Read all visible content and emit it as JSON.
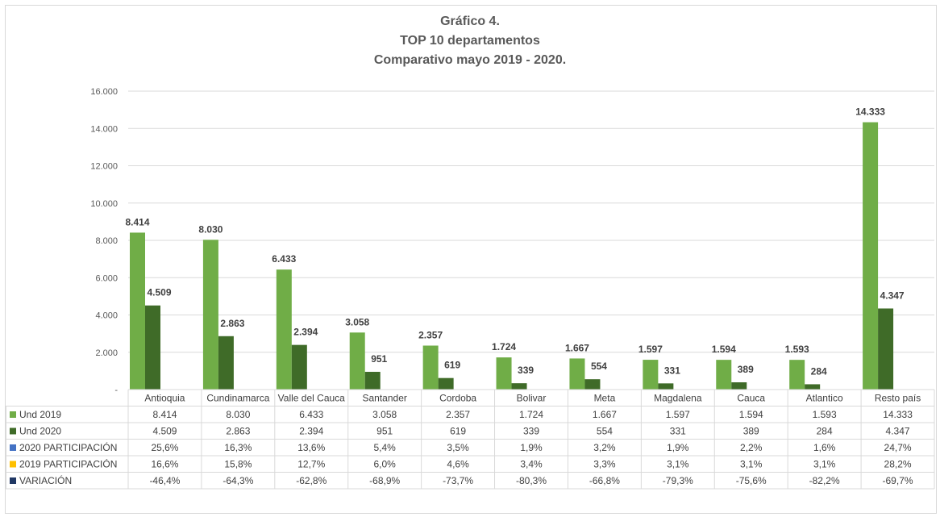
{
  "chart_data": {
    "type": "bar",
    "title": [
      "Gráfico 4.",
      "TOP 10 departamentos",
      "Comparativo mayo 2019 - 2020."
    ],
    "ylim": [
      0,
      16000
    ],
    "yticks": [
      "-",
      "2.000",
      "4.000",
      "6.000",
      "8.000",
      "10.000",
      "12.000",
      "14.000",
      "16.000"
    ],
    "grid": true,
    "legend_placement": "table-left",
    "categories": [
      "Antioquia",
      "Cundinamarca",
      "Valle del Cauca",
      "Santander",
      "Cordoba",
      "Bolivar",
      "Meta",
      "Magdalena",
      "Cauca",
      "Atlantico",
      "Resto país"
    ],
    "series": [
      {
        "name": "Und 2019",
        "color": "#70ad47",
        "values": [
          8414,
          8030,
          6433,
          3058,
          2357,
          1724,
          1667,
          1597,
          1594,
          1593,
          14333
        ],
        "labels": [
          "8.414",
          "8.030",
          "6.433",
          "3.058",
          "2.357",
          "1.724",
          "1.667",
          "1.597",
          "1.594",
          "1.593",
          "14.333"
        ]
      },
      {
        "name": "Und 2020",
        "color": "#3f6b28",
        "values": [
          4509,
          2863,
          2394,
          951,
          619,
          339,
          554,
          331,
          389,
          284,
          4347
        ],
        "labels": [
          "4.509",
          "2.863",
          "2.394",
          "951",
          "619",
          "339",
          "554",
          "331",
          "389",
          "284",
          "4.347"
        ]
      }
    ],
    "table_rows": [
      {
        "name": "Und 2019",
        "color": "#70ad47",
        "cells": [
          "8.414",
          "8.030",
          "6.433",
          "3.058",
          "2.357",
          "1.724",
          "1.667",
          "1.597",
          "1.594",
          "1.593",
          "14.333"
        ]
      },
      {
        "name": "Und 2020",
        "color": "#3f6b28",
        "cells": [
          "4.509",
          "2.863",
          "2.394",
          "951",
          "619",
          "339",
          "554",
          "331",
          "389",
          "284",
          "4.347"
        ]
      },
      {
        "name": "2020 PARTICIPACIÓN",
        "color": "#4472c4",
        "cells": [
          "25,6%",
          "16,3%",
          "13,6%",
          "5,4%",
          "3,5%",
          "1,9%",
          "3,2%",
          "1,9%",
          "2,2%",
          "1,6%",
          "24,7%"
        ]
      },
      {
        "name": "2019 PARTICIPACIÓN",
        "color": "#ffc000",
        "cells": [
          "16,6%",
          "15,8%",
          "12,7%",
          "6,0%",
          "4,6%",
          "3,4%",
          "3,3%",
          "3,1%",
          "3,1%",
          "3,1%",
          "28,2%"
        ]
      },
      {
        "name": "VARIACIÓN",
        "color": "#203864",
        "cells": [
          "-46,4%",
          "-64,3%",
          "-62,8%",
          "-68,9%",
          "-73,7%",
          "-80,3%",
          "-66,8%",
          "-79,3%",
          "-75,6%",
          "-82,2%",
          "-69,7%"
        ]
      }
    ]
  }
}
